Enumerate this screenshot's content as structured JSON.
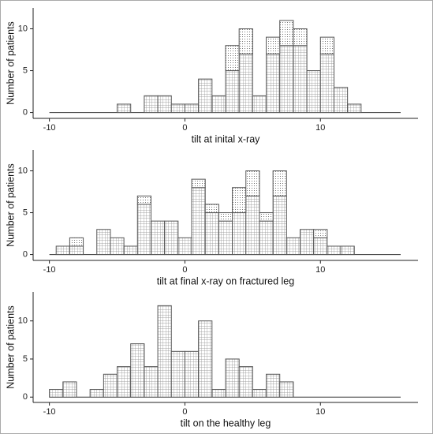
{
  "chart_data": [
    {
      "type": "stacked-histogram",
      "xlabel": "tilt at inital x-ray",
      "ylabel": "Number of patients",
      "bins": [
        -5,
        -4,
        -3,
        -2,
        -1,
        0,
        1,
        2,
        3,
        4,
        5,
        6,
        7,
        8,
        9,
        10,
        11,
        12,
        13
      ],
      "series": [
        {
          "pattern": "grid",
          "color": "#555555",
          "values": [
            1,
            0,
            2,
            2,
            1,
            1,
            4,
            2,
            5,
            7,
            2,
            7,
            8,
            8,
            5,
            7,
            3,
            1
          ]
        },
        {
          "pattern": "dots",
          "color": "#555555",
          "values": [
            0,
            0,
            0,
            0,
            0,
            0,
            0,
            0,
            3,
            3,
            0,
            2,
            3,
            2,
            0,
            2,
            0,
            0
          ]
        }
      ],
      "xlim": [
        -11.2,
        17.2
      ],
      "xticks": [
        -10,
        0,
        10
      ],
      "ylim": [
        -0.7,
        12.5
      ],
      "yticks": [
        0,
        5,
        10
      ]
    },
    {
      "type": "stacked-histogram",
      "xlabel": "tilt at final x-ray on fractured leg",
      "ylabel": "Number of patients",
      "bins": [
        -9.5,
        -8.5,
        -7.5,
        -6.5,
        -5.5,
        -4.5,
        -3.5,
        -2.5,
        -1.5,
        -0.5,
        0.5,
        1.5,
        2.5,
        3.5,
        4.5,
        5.5,
        6.5,
        7.5,
        8.5,
        9.5,
        10.5,
        11.5,
        12.5
      ],
      "series": [
        {
          "pattern": "grid",
          "color": "#555555",
          "values": [
            1,
            1,
            0,
            3,
            2,
            1,
            6,
            4,
            4,
            2,
            8,
            5,
            4,
            5,
            7,
            4,
            7,
            2,
            3,
            2,
            1,
            1
          ]
        },
        {
          "pattern": "dots",
          "color": "#555555",
          "values": [
            0,
            1,
            0,
            0,
            0,
            0,
            1,
            0,
            0,
            0,
            1,
            1,
            1,
            3,
            3,
            1,
            3,
            0,
            0,
            1,
            0,
            0
          ]
        }
      ],
      "xlim": [
        -11.2,
        17.2
      ],
      "xticks": [
        -10,
        0,
        10
      ],
      "ylim": [
        -0.7,
        12.5
      ],
      "yticks": [
        0,
        5,
        10
      ]
    },
    {
      "type": "stacked-histogram",
      "xlabel": "tilt on the healthy leg",
      "ylabel": "Number of patients",
      "bins": [
        -10,
        -9,
        -8,
        -7,
        -6,
        -5,
        -4,
        -3,
        -2,
        -1,
        0,
        1,
        2,
        3,
        4,
        5,
        6,
        7,
        8
      ],
      "series": [
        {
          "pattern": "grid",
          "color": "#555555",
          "values": [
            1,
            2,
            0,
            1,
            3,
            4,
            7,
            4,
            12,
            6,
            6,
            10,
            1,
            5,
            4,
            1,
            3,
            2
          ]
        }
      ],
      "xlim": [
        -11.2,
        17.2
      ],
      "xticks": [
        -10,
        0,
        10
      ],
      "ylim": [
        -0.7,
        13.8
      ],
      "yticks": [
        0,
        5,
        10
      ]
    }
  ]
}
